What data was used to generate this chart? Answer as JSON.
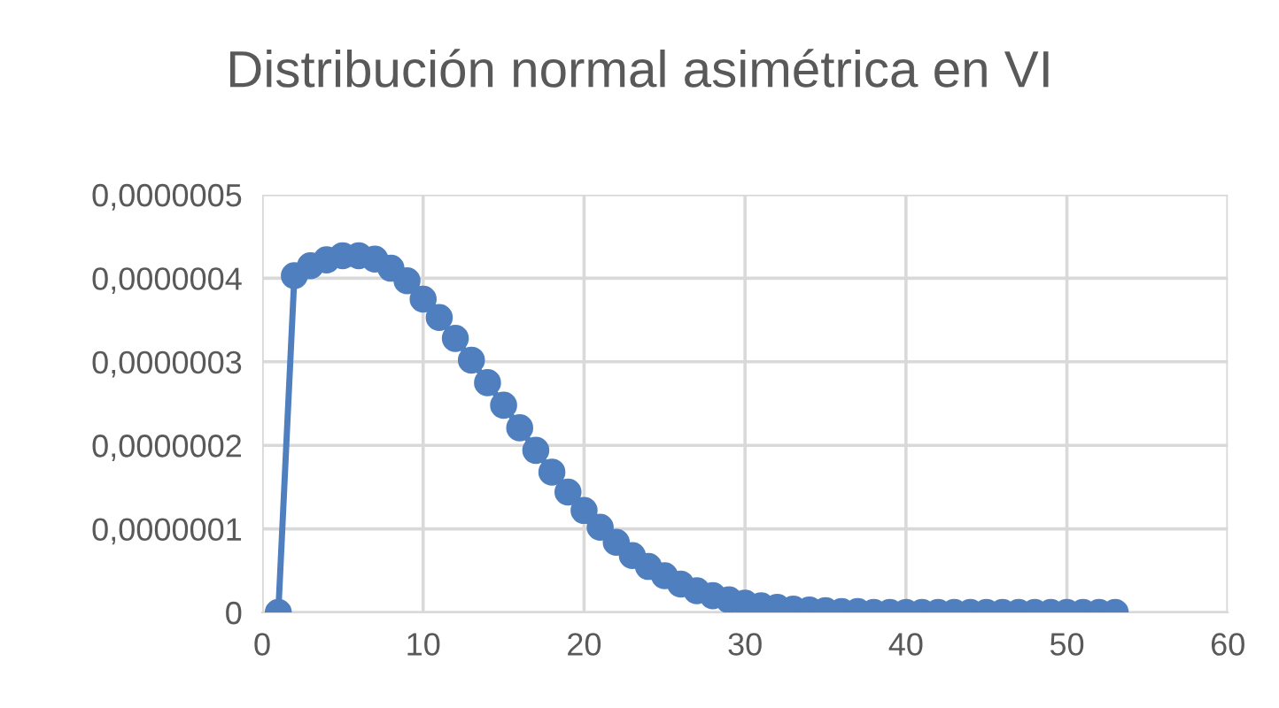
{
  "chart_data": {
    "type": "line",
    "title": "Distribución normal asimétrica en VI",
    "x": [
      1,
      2,
      3,
      4,
      5,
      6,
      7,
      8,
      9,
      10,
      11,
      12,
      13,
      14,
      15,
      16,
      17,
      18,
      19,
      20,
      21,
      22,
      23,
      24,
      25,
      26,
      27,
      28,
      29,
      30,
      31,
      32,
      33,
      34,
      35,
      36,
      37,
      38,
      39,
      40,
      41,
      42,
      43,
      44,
      45,
      46,
      47,
      48,
      49,
      50,
      51,
      52,
      53
    ],
    "series": [
      {
        "color": "#4f7fbe",
        "values": [
          0,
          4.03e-07,
          4.15e-07,
          4.22e-07,
          4.27e-07,
          4.27e-07,
          4.23e-07,
          4.12e-07,
          3.97e-07,
          3.75e-07,
          3.53e-07,
          3.28e-07,
          3.02e-07,
          2.75e-07,
          2.48e-07,
          2.21e-07,
          1.94e-07,
          1.68e-07,
          1.44e-07,
          1.22e-07,
          1.02e-07,
          8.4e-08,
          6.8e-08,
          5.5e-08,
          4.4e-08,
          3.4e-08,
          2.6e-08,
          2e-08,
          1.5e-08,
          1.1e-08,
          8e-09,
          6e-09,
          4e-09,
          3e-09,
          2e-09,
          1e-09,
          1e-09,
          0,
          0,
          0,
          0,
          0,
          0,
          0,
          0,
          0,
          0,
          0,
          0,
          0,
          0,
          0,
          0
        ]
      }
    ],
    "xlim": [
      0,
      60
    ],
    "xticks": [
      0,
      10,
      20,
      30,
      40,
      50,
      60
    ],
    "ylim": [
      0,
      5e-07
    ],
    "yticks": [
      {
        "value": 0,
        "label": "0"
      },
      {
        "value": 1e-07,
        "label": "0,0000001"
      },
      {
        "value": 2e-07,
        "label": "0,0000002"
      },
      {
        "value": 3e-07,
        "label": "0,0000003"
      },
      {
        "value": 4e-07,
        "label": "0,0000004"
      },
      {
        "value": 5e-07,
        "label": "0,0000005"
      }
    ],
    "grid": true,
    "marker": "circle",
    "line_style": "solid"
  }
}
